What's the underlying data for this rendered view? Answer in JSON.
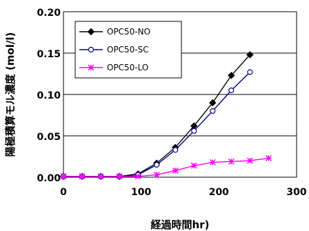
{
  "chart_data": {
    "type": "line",
    "xlabel": "経過時間hr)",
    "ylabel": "陽極積算モル濃度 (mol/l)",
    "xlim": [
      0,
      300
    ],
    "ylim": [
      0,
      0.2
    ],
    "x_ticks": [
      "0",
      "100",
      "200",
      "300"
    ],
    "y_ticks": [
      "0.00",
      "0.05",
      "0.10",
      "0.15",
      "0.20"
    ],
    "grid": "horizontal",
    "legend_position": "top-left",
    "series": [
      {
        "name": "OPC50-NO",
        "color": "#000000",
        "marker": "diamond-filled",
        "x": [
          0,
          24,
          48,
          72,
          96,
          120,
          144,
          168,
          192,
          216,
          240
        ],
        "y": [
          0.001,
          0.001,
          0.001,
          0.001,
          0.004,
          0.017,
          0.036,
          0.062,
          0.09,
          0.123,
          0.148
        ]
      },
      {
        "name": "OPC50-SC",
        "color": "#000080",
        "marker": "circle-open",
        "x": [
          0,
          24,
          48,
          72,
          96,
          120,
          144,
          168,
          192,
          216,
          240
        ],
        "y": [
          0.001,
          0.001,
          0.001,
          0.001,
          0.003,
          0.015,
          0.033,
          0.056,
          0.08,
          0.105,
          0.127
        ]
      },
      {
        "name": "OPC50-LO",
        "color": "#ff00ff",
        "marker": "asterisk",
        "x": [
          0,
          24,
          48,
          72,
          96,
          120,
          144,
          168,
          192,
          216,
          240,
          264
        ],
        "y": [
          0.001,
          0.001,
          0.001,
          0.001,
          0.001,
          0.003,
          0.008,
          0.014,
          0.018,
          0.019,
          0.02,
          0.023
        ]
      }
    ]
  }
}
